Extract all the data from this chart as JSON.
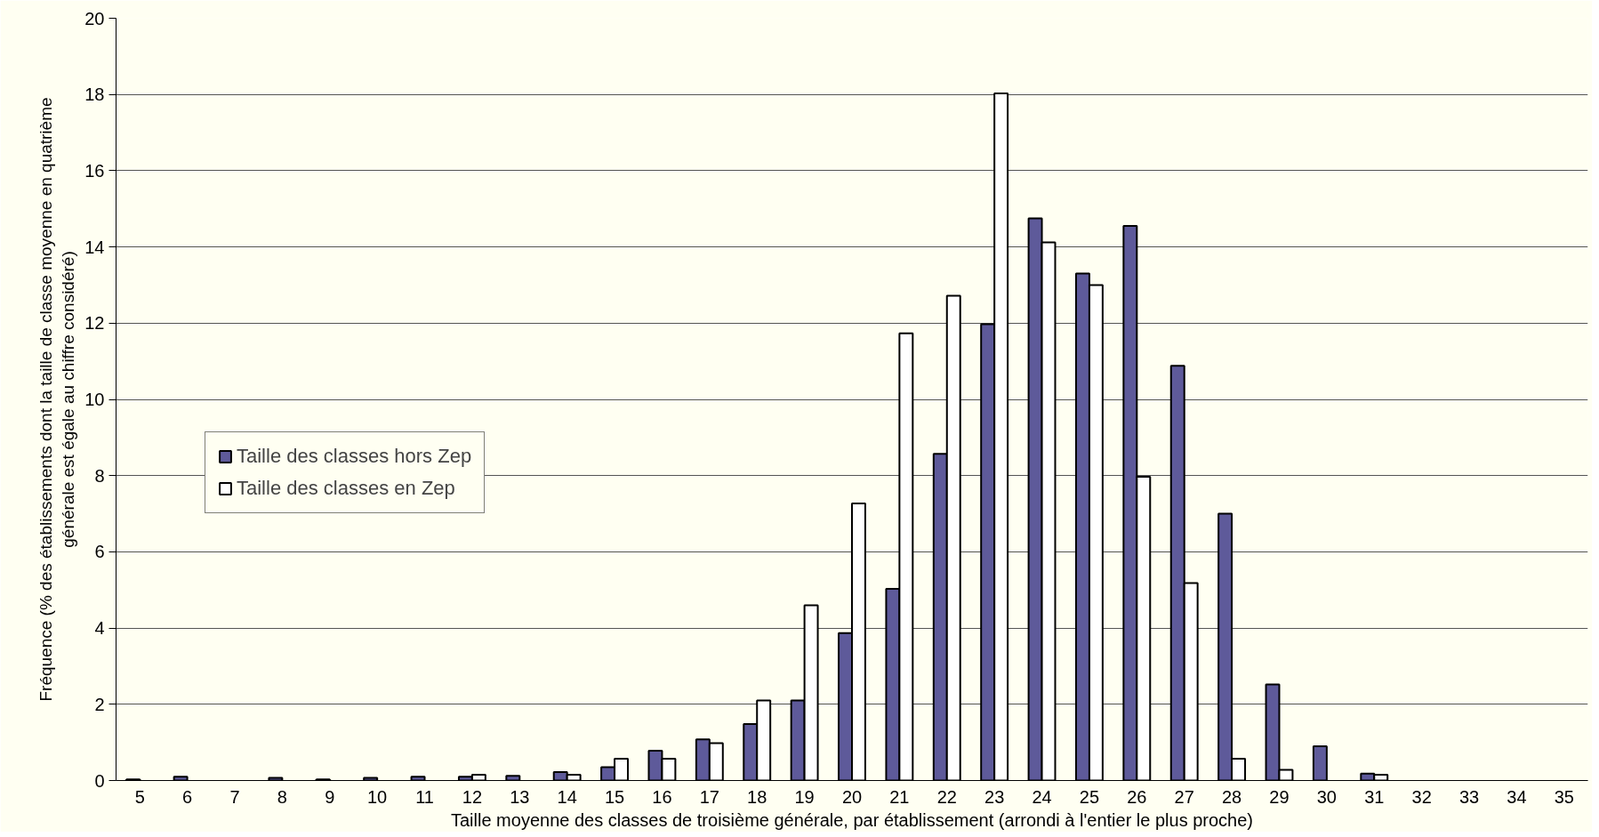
{
  "chart_data": {
    "type": "bar",
    "xlabel": "Taille moyenne des classes de troisième générale, par établissement (arrondi à l'entier le plus proche)",
    "ylabel": "Fréquence (% des établissements dont la taille de classe moyenne en quatrième générale est égale au chiffre considéré)",
    "categories": [
      "5",
      "6",
      "7",
      "8",
      "9",
      "10",
      "11",
      "12",
      "13",
      "14",
      "15",
      "16",
      "17",
      "18",
      "19",
      "20",
      "21",
      "22",
      "23",
      "24",
      "25",
      "26",
      "27",
      "28",
      "29",
      "30",
      "31",
      "32",
      "33",
      "34",
      "35"
    ],
    "series": [
      {
        "name": "Taille des classes hors Zep",
        "color": "#5e5a9a",
        "values": [
          0.03,
          0.1,
          null,
          0.07,
          0.03,
          0.07,
          0.1,
          0.1,
          0.12,
          0.22,
          0.35,
          0.78,
          1.08,
          1.48,
          2.1,
          3.87,
          5.03,
          8.57,
          11.97,
          14.75,
          13.3,
          14.55,
          10.88,
          7.0,
          2.52,
          0.9,
          0.18,
          null,
          null,
          null,
          null
        ]
      },
      {
        "name": "Taille des classes en Zep",
        "color": "#ffffff",
        "values": [
          null,
          null,
          null,
          null,
          null,
          null,
          null,
          0.15,
          null,
          0.15,
          0.57,
          0.57,
          0.98,
          2.1,
          4.6,
          7.27,
          11.73,
          12.72,
          18.03,
          14.12,
          13.0,
          7.97,
          5.18,
          0.57,
          0.28,
          null,
          0.15,
          null,
          null,
          null,
          null
        ]
      }
    ],
    "ylim": [
      0,
      20
    ],
    "yticks": [
      0,
      2,
      4,
      6,
      8,
      10,
      12,
      14,
      16,
      18,
      20
    ],
    "grid": "y",
    "legend": "left"
  }
}
